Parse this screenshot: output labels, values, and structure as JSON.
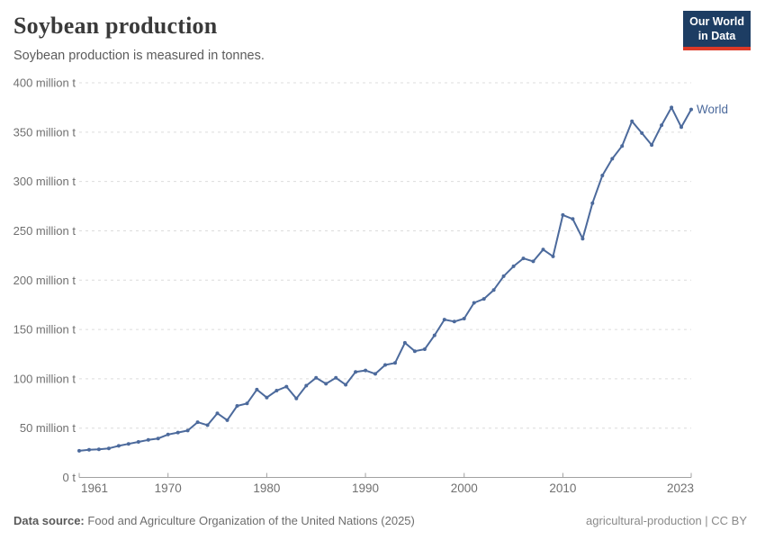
{
  "header": {
    "title": "Soybean production",
    "subtitle": "Soybean production is measured in tonnes.",
    "logo": {
      "line1": "Our World",
      "line2": "in Data",
      "bg_color": "#1d3d63",
      "accent_color": "#dc3927"
    }
  },
  "chart_data": {
    "type": "line",
    "title": "Soybean production",
    "xlabel": "",
    "ylabel": "",
    "unit": "million t",
    "grid": "dashed-horizontal",
    "legend_position": "end-of-line",
    "ylim": [
      0,
      400
    ],
    "ytick_step": 50,
    "ytick_suffix": " million t",
    "ytick_zero_label": "0 t",
    "xticks": [
      1961,
      1970,
      1980,
      1990,
      2000,
      2010,
      2023
    ],
    "x": [
      1961,
      1962,
      1963,
      1964,
      1965,
      1966,
      1967,
      1968,
      1969,
      1970,
      1971,
      1972,
      1973,
      1974,
      1975,
      1976,
      1977,
      1978,
      1979,
      1980,
      1981,
      1982,
      1983,
      1984,
      1985,
      1986,
      1987,
      1988,
      1989,
      1990,
      1991,
      1992,
      1993,
      1994,
      1995,
      1996,
      1997,
      1998,
      1999,
      2000,
      2001,
      2002,
      2003,
      2004,
      2005,
      2006,
      2007,
      2008,
      2009,
      2010,
      2011,
      2012,
      2013,
      2014,
      2015,
      2016,
      2017,
      2018,
      2019,
      2020,
      2021,
      2022,
      2023
    ],
    "series": [
      {
        "name": "World",
        "color": "#4c6a9c",
        "values": [
          27,
          28,
          28.5,
          29.5,
          32,
          34,
          36,
          38,
          39.5,
          43.5,
          45.5,
          47.5,
          56,
          53,
          65,
          58,
          72.5,
          75,
          89,
          81,
          88,
          92,
          80,
          93,
          101,
          95,
          101,
          94,
          107,
          108.5,
          105,
          114,
          116,
          136.5,
          128,
          130,
          144,
          160,
          158,
          161,
          177,
          181,
          190,
          204,
          214,
          222,
          219,
          231,
          224,
          266,
          262,
          242,
          278,
          306,
          323,
          336,
          361,
          349,
          337,
          357,
          375,
          355,
          373
        ]
      }
    ],
    "axis_color": "#a1a1a1",
    "gridline_color": "#dcdcdc",
    "tick_label_color": "#707070"
  },
  "footer": {
    "source_label": "Data source:",
    "source_text": "Food and Agriculture Organization of the United Nations (2025)",
    "credit": "agricultural-production | CC BY"
  }
}
